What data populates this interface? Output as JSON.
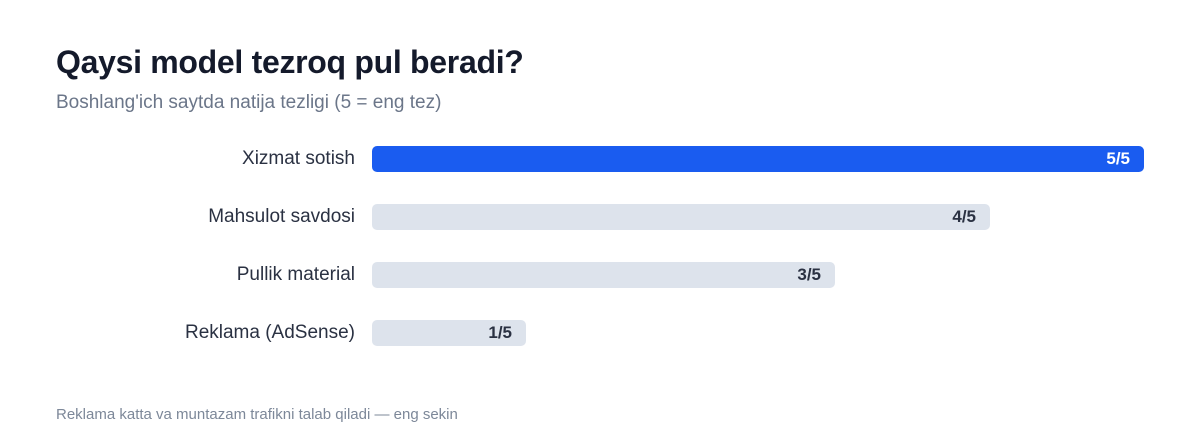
{
  "chart_data": {
    "type": "bar",
    "orientation": "horizontal",
    "title": "Qaysi model tezroq pul beradi?",
    "subtitle": "Boshlang'ich saytda natija tezligi (5 = eng tez)",
    "categories": [
      "Xizmat sotish",
      "Mahsulot savdosi",
      "Pullik material",
      "Reklama (AdSense)"
    ],
    "values": [
      5,
      4,
      3,
      1
    ],
    "value_labels": [
      "5/5",
      "4/5",
      "3/5",
      "1/5"
    ],
    "xlim": [
      0,
      5
    ],
    "grid": false,
    "legend": "none",
    "note": "Reklama katta va muntazam trafikni talab qiladi — eng sekin",
    "colors": {
      "highlight": "#1a5cf0",
      "default": "#dde3ec"
    }
  }
}
